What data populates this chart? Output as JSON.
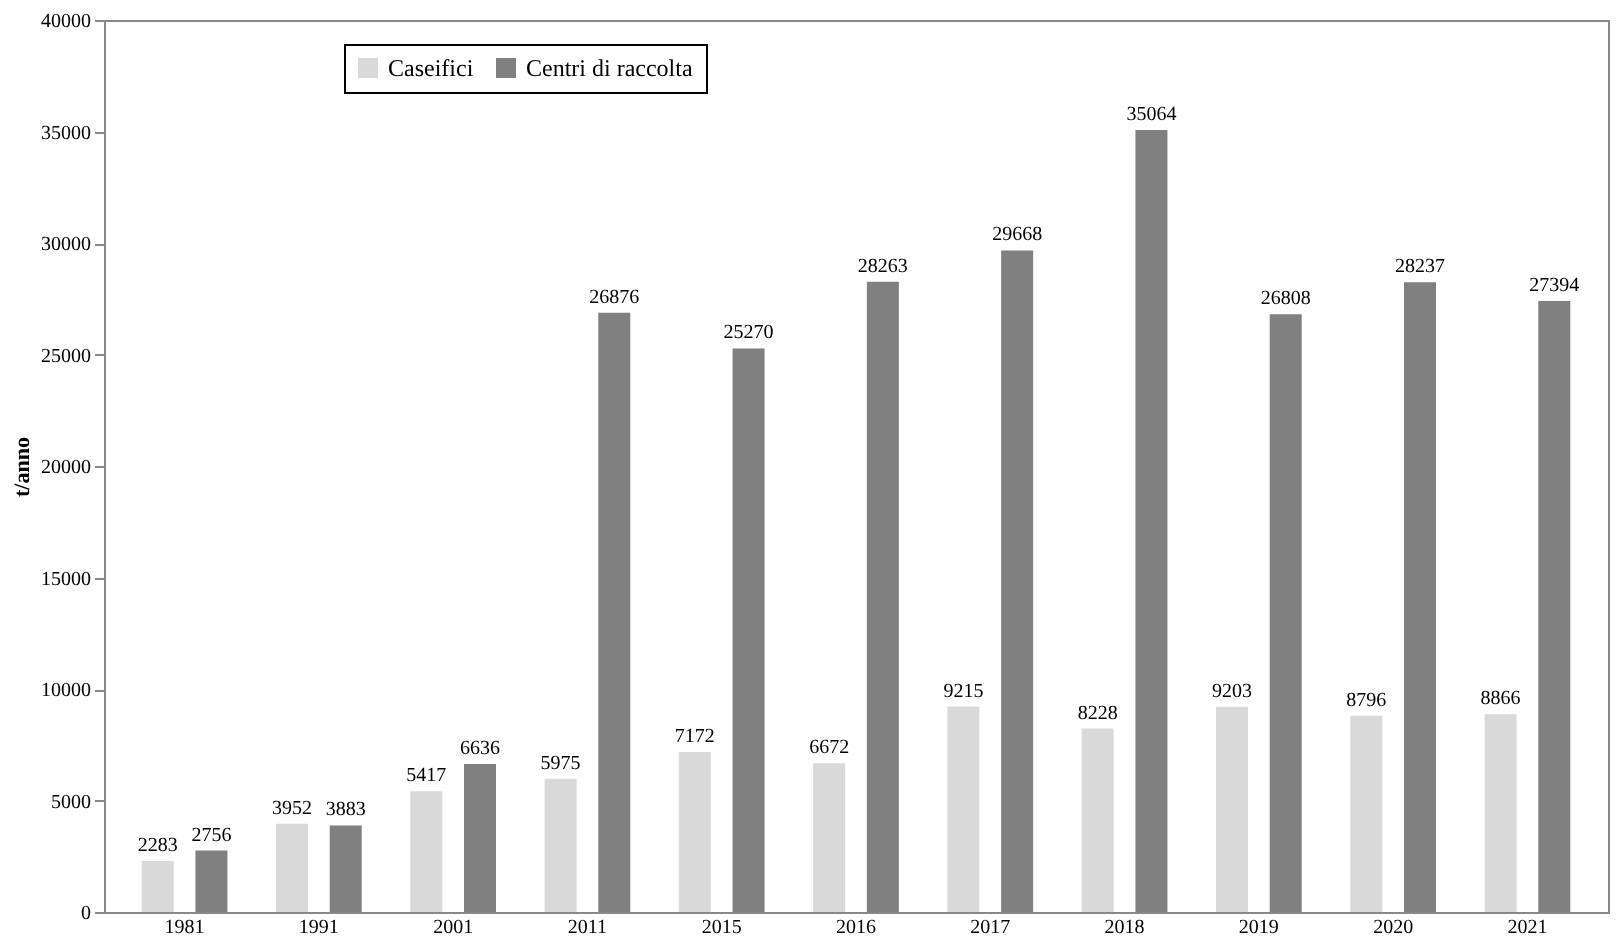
{
  "chart_data": {
    "type": "bar",
    "ylabel": "t/anno",
    "categories": [
      "1981",
      "1991",
      "2001",
      "2011",
      "2015",
      "2016",
      "2017",
      "2018",
      "2019",
      "2020",
      "2021"
    ],
    "series": [
      {
        "name": "Caseifici",
        "color": "#d9d9d9",
        "values": [
          2283,
          3952,
          5417,
          5975,
          7172,
          6672,
          9215,
          8228,
          9203,
          8796,
          8866
        ]
      },
      {
        "name": "Centri di raccolta",
        "color": "#808080",
        "values": [
          2756,
          3883,
          6636,
          26876,
          25270,
          28263,
          29668,
          35064,
          26808,
          28237,
          27394
        ]
      }
    ],
    "ylim": [
      0,
      40000
    ],
    "yticks": [
      0,
      5000,
      10000,
      15000,
      20000,
      25000,
      30000,
      35000,
      40000
    ],
    "data_labels": true,
    "grid": false,
    "legend": "top left"
  }
}
